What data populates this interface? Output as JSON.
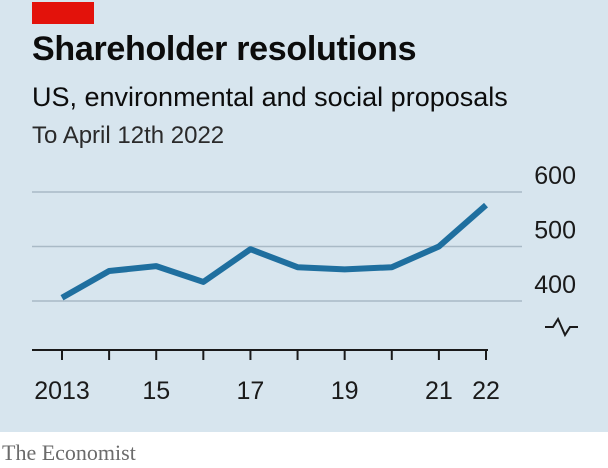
{
  "header": {
    "title": "Shareholder resolutions",
    "subtitle": "US, environmental and social proposals",
    "note": "To April 12th 2022"
  },
  "footer": {
    "source": "The Economist"
  },
  "colors": {
    "background": "#d7e5ee",
    "line": "#1f6f9f",
    "accent_tag": "#e3120b",
    "gridline": "#a9bac6"
  },
  "chart_data": {
    "type": "line",
    "title": "Shareholder resolutions",
    "subtitle": "US, environmental and social proposals",
    "note": "To April 12th 2022",
    "x": [
      2013,
      2014,
      2015,
      2016,
      2017,
      2018,
      2019,
      2020,
      2021,
      2022
    ],
    "x_tick_labels": [
      {
        "x": 2013,
        "label": "2013"
      },
      {
        "x": 2015,
        "label": "15"
      },
      {
        "x": 2017,
        "label": "17"
      },
      {
        "x": 2019,
        "label": "19"
      },
      {
        "x": 2021,
        "label": "21"
      },
      {
        "x": 2022,
        "label": "22"
      }
    ],
    "series": [
      {
        "values": [
          406,
          455,
          464,
          435,
          495,
          462,
          458,
          462,
          500,
          576
        ]
      }
    ],
    "yticks": [
      400,
      500,
      600
    ],
    "ylim": [
      400,
      600
    ],
    "y_axis_break": true,
    "y_axis_side": "right",
    "xlim": [
      2013,
      2022
    ],
    "grid": true,
    "legend": "none"
  }
}
